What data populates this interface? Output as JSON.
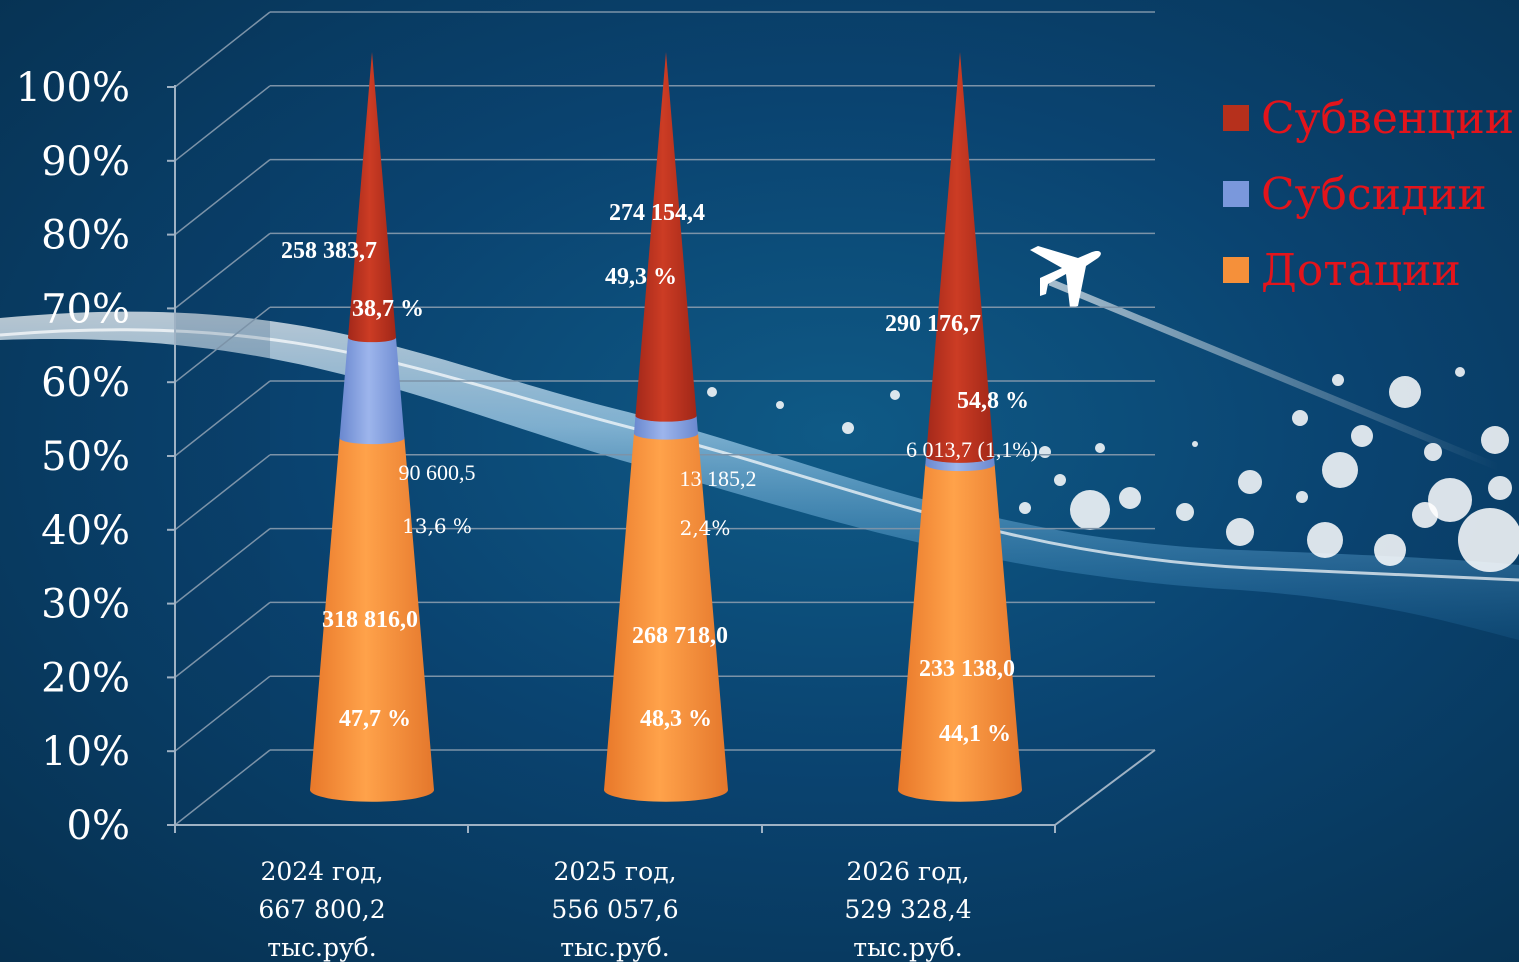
{
  "chart_data": {
    "type": "bar",
    "style": "3d-cone, 100% stacked",
    "y_ticks": [
      "0%",
      "10%",
      "20%",
      "30%",
      "40%",
      "50%",
      "60%",
      "70%",
      "80%",
      "90%",
      "100%"
    ],
    "ylim": [
      0,
      100
    ],
    "categories": [
      [
        "2024 год,",
        "667 800,2",
        "тыс.руб."
      ],
      [
        "2025 год,",
        "556 057,6",
        "тыс.руб."
      ],
      [
        "2026 год,",
        "529 328,4",
        "тыс.руб."
      ]
    ],
    "series": [
      {
        "name": "Дотации",
        "color": "#f5903a",
        "values": [
          47.7,
          48.3,
          44.1
        ],
        "amounts": [
          "318 816,0",
          "268 718,0",
          "233 138,0"
        ],
        "pct_labels": [
          "47,7 %",
          "48,3 %",
          "44,1 %"
        ]
      },
      {
        "name": "Субсидии",
        "color": "#7a98dc",
        "values": [
          13.6,
          2.4,
          1.1
        ],
        "amounts": [
          "90 600,5",
          "13 185,2",
          "6 013,7 (1,1%)"
        ],
        "pct_labels": [
          "13,6 %",
          "2,4%",
          ""
        ]
      },
      {
        "name": "Субвенции",
        "color": "#b6301c",
        "values": [
          38.7,
          49.3,
          54.8
        ],
        "amounts": [
          "258 383,7",
          "274 154,4",
          "290 176,7"
        ],
        "pct_labels": [
          "38,7 %",
          "49,3 %",
          "54,8 %"
        ]
      }
    ],
    "legend": {
      "position": "top-right",
      "items": [
        "Субвенции",
        "Субсидии",
        "Дотации"
      ]
    },
    "grid": true
  }
}
